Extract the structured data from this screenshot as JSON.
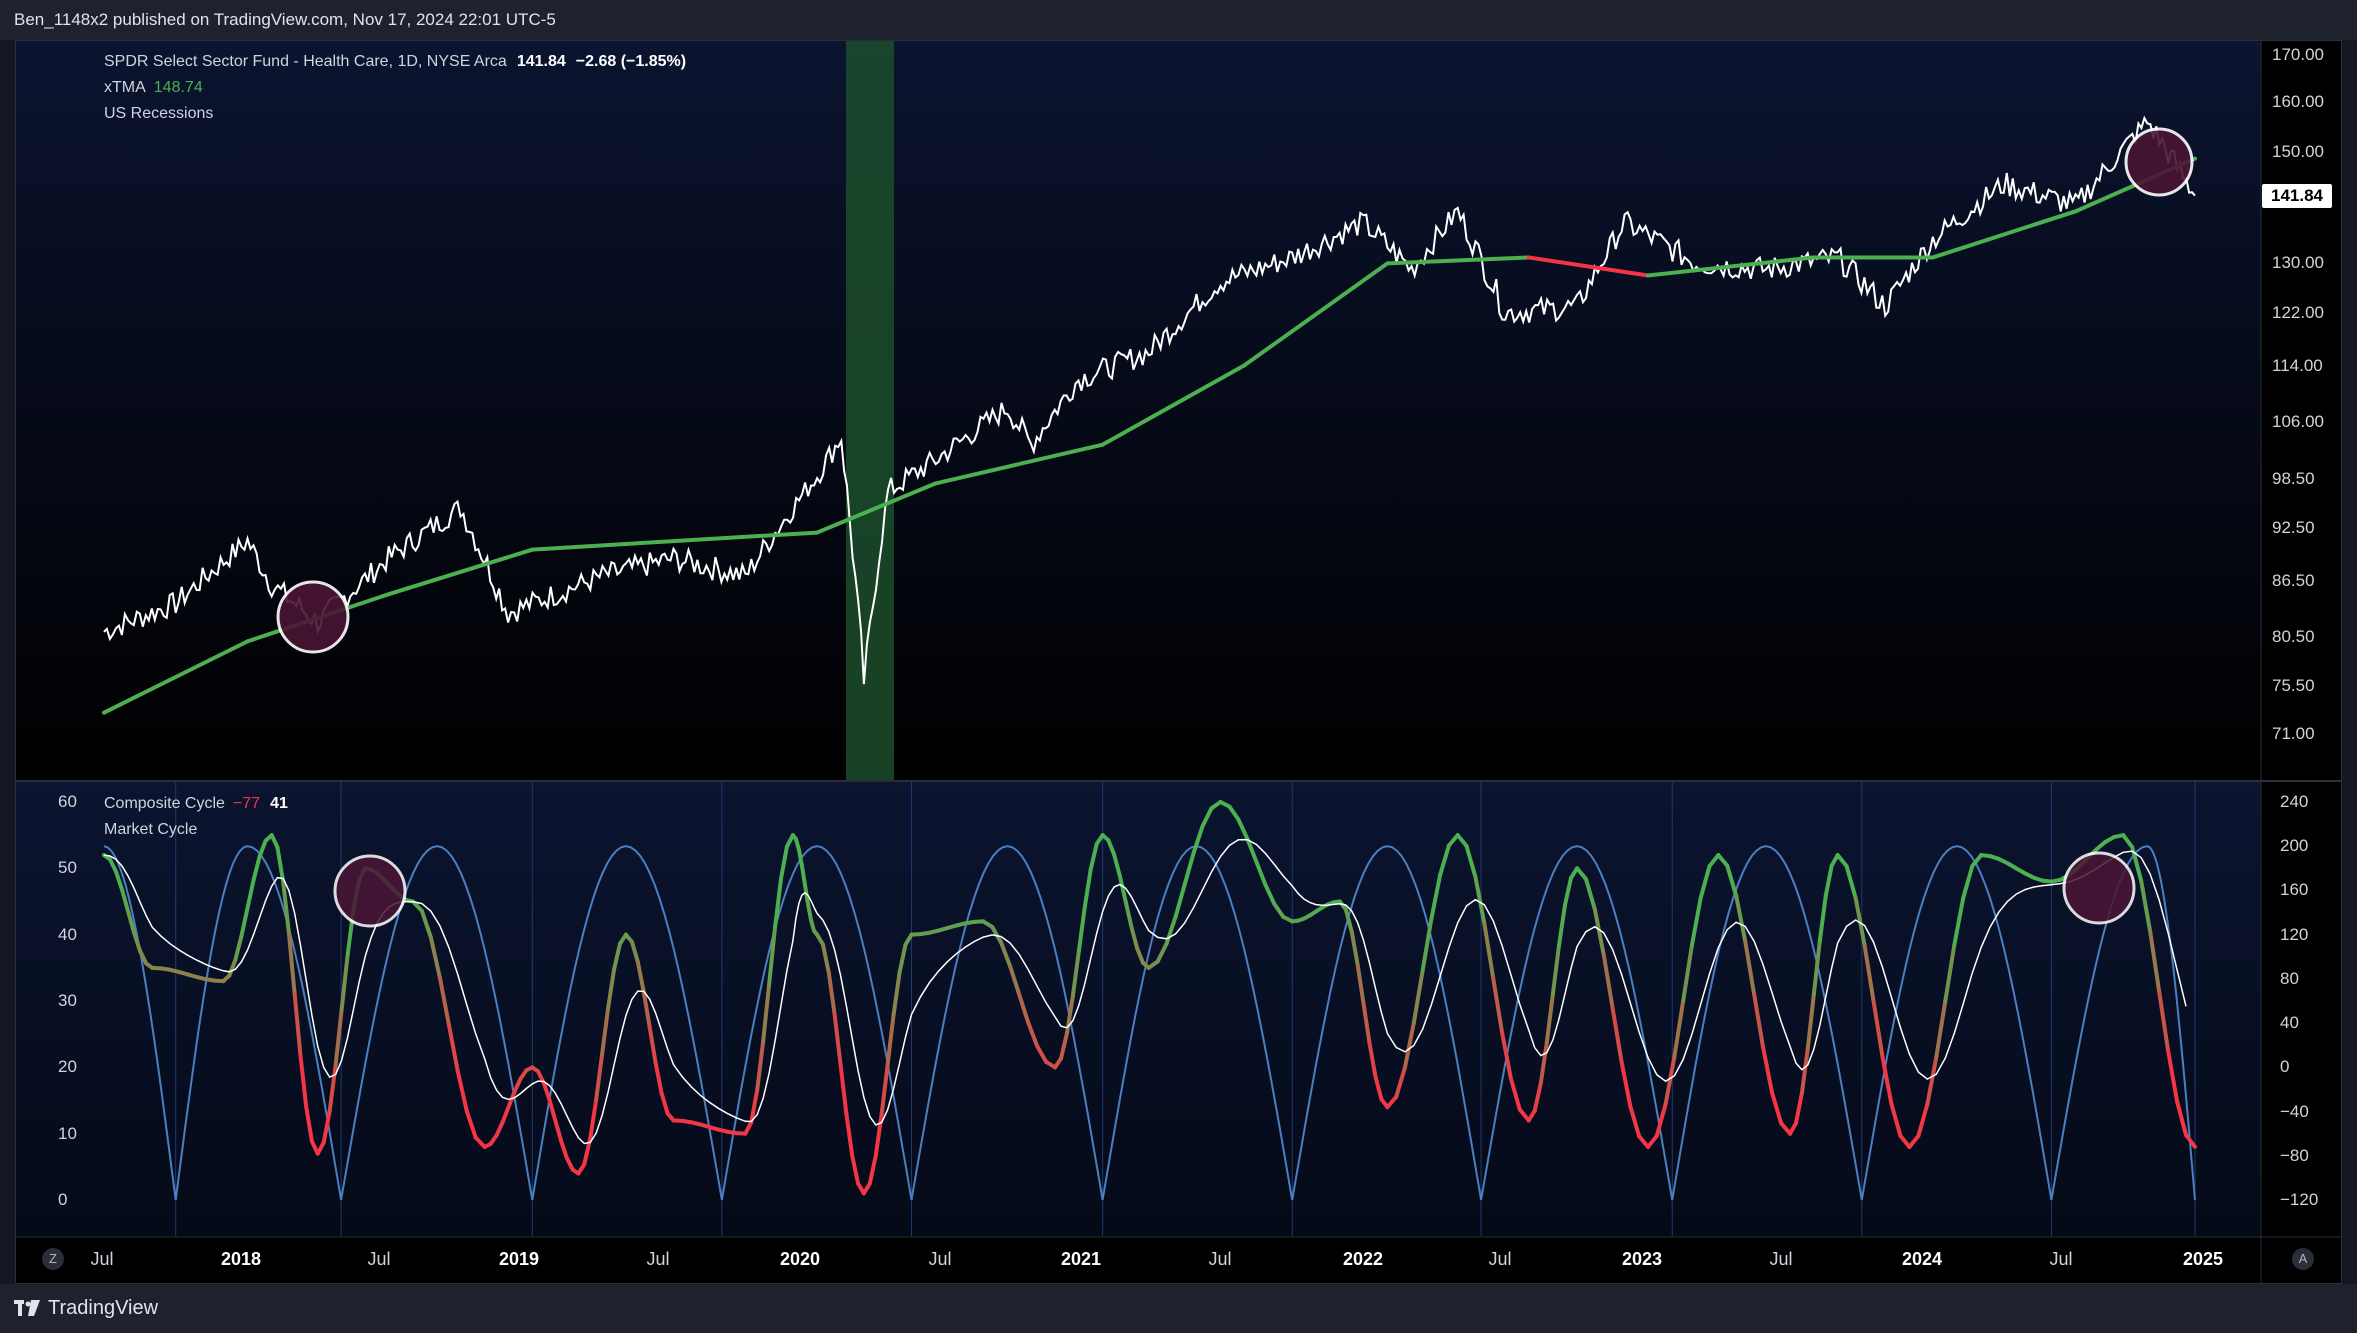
{
  "header": {
    "publish_text": "Ben_1148x2 published on TradingView.com, Nov 17, 2024 22:01 UTC-5"
  },
  "main_pane": {
    "symbol_title": "SPDR Select Sector Fund - Health Care, 1D, NYSE Arca",
    "last_price": "141.84",
    "change": "−2.68 (−1.85%)",
    "ma_label": "xTMA",
    "ma_value": "148.74",
    "recession_label": "US Recessions",
    "price_tag": "141.84",
    "y_ticks": [
      "170.00",
      "160.00",
      "150.00",
      "130.00",
      "122.00",
      "114.00",
      "106.00",
      "98.50",
      "92.50",
      "86.50",
      "80.50",
      "75.50",
      "71.00"
    ]
  },
  "lower_pane": {
    "indicator_label": "Composite Cycle",
    "indicator_val1": "−77",
    "indicator_val2": "41",
    "cycle_label": "Market Cycle",
    "left_ticks": [
      "60",
      "50",
      "40",
      "30",
      "20",
      "10",
      "0"
    ],
    "right_ticks": [
      "240",
      "200",
      "160",
      "120",
      "80",
      "40",
      "0",
      "−40",
      "−80",
      "−120"
    ]
  },
  "time_axis": {
    "labels": [
      "Jul",
      "2018",
      "Jul",
      "2019",
      "Jul",
      "2020",
      "Jul",
      "2021",
      "Jul",
      "2022",
      "Jul",
      "2023",
      "Jul",
      "2024",
      "Jul",
      "2025"
    ],
    "left_button": "Z",
    "right_button": "A"
  },
  "footer": {
    "brand": "TradingView"
  },
  "colors": {
    "background": "#000000",
    "price_line": "#ffffff",
    "ma_up": "#4caf50",
    "ma_down": "#f23645",
    "recession": "#1b4d2b",
    "cycle_line": "#4a7fc1",
    "highlight_circle": "#4a1534"
  },
  "chart_data": [
    {
      "type": "line",
      "title": "SPDR Select Sector Fund - Health Care, 1D, NYSE Arca",
      "x_range": [
        "2017-07-01",
        "2024-11-15"
      ],
      "ylim": [
        71,
        170
      ],
      "y_scale": "log",
      "series": [
        {
          "name": "SPDR Select Sector Fund - Health Care",
          "x": [
            "2017-07",
            "2017-10",
            "2018-01",
            "2018-02",
            "2018-04",
            "2018-07",
            "2018-10",
            "2018-12",
            "2019-04",
            "2019-07",
            "2019-10",
            "2020-01",
            "2020-02",
            "2020-03",
            "2020-04",
            "2020-06",
            "2020-09",
            "2020-10",
            "2020-12",
            "2021-03",
            "2021-06",
            "2021-09",
            "2021-12",
            "2022-02",
            "2022-04",
            "2022-06",
            "2022-09",
            "2022-11",
            "2023-02",
            "2023-05",
            "2023-08",
            "2023-10",
            "2023-12",
            "2024-03",
            "2024-06",
            "2024-09",
            "2024-11"
          ],
          "y": [
            81,
            84,
            91,
            86,
            82,
            89,
            95,
            83,
            87,
            89,
            87,
            99,
            104,
            76,
            97,
            101,
            108,
            103,
            112,
            116,
            127,
            131,
            137,
            129,
            139,
            122,
            123,
            137,
            130,
            129,
            131,
            123,
            134,
            144,
            140,
            156,
            141.84
          ]
        },
        {
          "name": "xTMA",
          "x": [
            "2017-07",
            "2018-01",
            "2018-07",
            "2019-01",
            "2019-07",
            "2020-01",
            "2020-06",
            "2021-01",
            "2021-07",
            "2022-01",
            "2022-07",
            "2022-12",
            "2023-07",
            "2023-12",
            "2024-06",
            "2024-11"
          ],
          "y": [
            73,
            80,
            85,
            90,
            91,
            92,
            98,
            103,
            114,
            130,
            131,
            128,
            131,
            131,
            139,
            148.74
          ]
        }
      ],
      "recession_band": [
        "2020-02",
        "2020-04"
      ]
    },
    {
      "type": "line",
      "title": "Composite Cycle",
      "ylim": [
        0,
        60
      ],
      "series": [
        {
          "name": "Composite Cycle",
          "x": [
            "2017-07",
            "2017-09",
            "2017-12",
            "2018-02",
            "2018-04",
            "2018-06",
            "2018-08",
            "2018-11",
            "2019-01",
            "2019-03",
            "2019-05",
            "2019-07",
            "2019-10",
            "2019-12",
            "2020-01",
            "2020-03",
            "2020-05",
            "2020-08",
            "2020-11",
            "2021-01",
            "2021-03",
            "2021-06",
            "2021-09",
            "2021-11",
            "2022-01",
            "2022-04",
            "2022-07",
            "2022-09",
            "2022-12",
            "2023-03",
            "2023-06",
            "2023-08",
            "2023-11",
            "2024-02",
            "2024-05",
            "2024-08",
            "2024-11"
          ],
          "y": [
            52,
            35,
            33,
            55,
            7,
            50,
            45,
            8,
            20,
            4,
            40,
            12,
            10,
            55,
            40,
            1,
            40,
            42,
            20,
            55,
            35,
            60,
            42,
            45,
            14,
            55,
            12,
            50,
            8,
            52,
            10,
            52,
            8,
            52,
            48,
            55,
            8
          ]
        },
        {
          "name": "Market Cycle",
          "x": [
            "2017-07",
            "2017-10",
            "2018-01",
            "2018-05",
            "2018-09",
            "2019-01",
            "2019-05",
            "2019-09",
            "2020-01",
            "2020-05",
            "2020-09",
            "2021-01",
            "2021-05",
            "2021-09",
            "2022-01",
            "2022-05",
            "2022-09",
            "2023-01",
            "2023-05",
            "2023-09",
            "2024-01",
            "2024-05",
            "2024-09",
            "2024-11"
          ],
          "y": [
            200,
            -120,
            200,
            -120,
            200,
            -120,
            200,
            -120,
            200,
            -120,
            200,
            -120,
            200,
            -120,
            200,
            -120,
            200,
            -120,
            200,
            -120,
            200,
            -120,
            200,
            -120
          ]
        }
      ]
    }
  ]
}
